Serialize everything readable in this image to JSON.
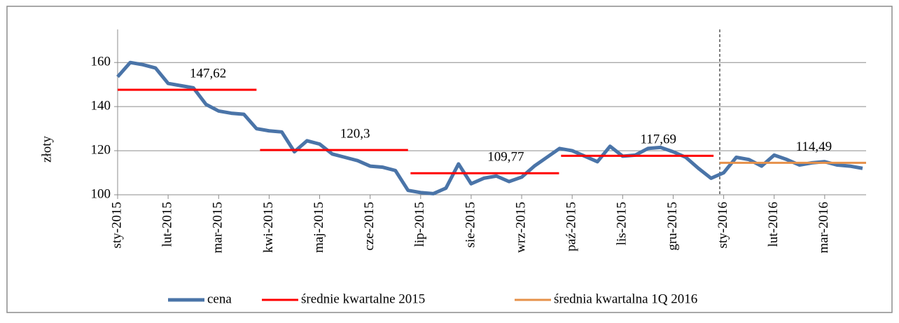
{
  "chart_data": {
    "type": "line",
    "y_label": "złoty",
    "xlim": [
      0,
      14.82
    ],
    "xticks": [
      {
        "value": 0,
        "label": "sty-2015"
      },
      {
        "value": 1,
        "label": "lut-2015"
      },
      {
        "value": 2,
        "label": "mar-2015"
      },
      {
        "value": 3,
        "label": "kwi-2015"
      },
      {
        "value": 4,
        "label": "maj-2015"
      },
      {
        "value": 5,
        "label": "cze-2015"
      },
      {
        "value": 6,
        "label": "lip-2015"
      },
      {
        "value": 7,
        "label": "sie-2015"
      },
      {
        "value": 8,
        "label": "wrz-2015"
      },
      {
        "value": 9,
        "label": "paź-2015"
      },
      {
        "value": 10,
        "label": "lis-2015"
      },
      {
        "value": 11,
        "label": "gru-2015"
      },
      {
        "value": 12,
        "label": "sty-2016"
      },
      {
        "value": 13,
        "label": "lut-2016"
      },
      {
        "value": 14,
        "label": "mar-2016"
      }
    ],
    "ylim": [
      100,
      175
    ],
    "yticks": [
      100,
      120,
      140,
      160
    ],
    "grid": true,
    "legend": "bottom",
    "series": [
      {
        "name": "cena",
        "color": "#4a74a8",
        "width": 5,
        "x": [
          0,
          0.25,
          0.5,
          0.75,
          1,
          1.25,
          1.5,
          1.75,
          2,
          2.25,
          2.5,
          2.75,
          3,
          3.25,
          3.5,
          3.75,
          4,
          4.25,
          4.5,
          4.75,
          5,
          5.25,
          5.5,
          5.75,
          6,
          6.25,
          6.5,
          6.75,
          7,
          7.25,
          7.5,
          7.75,
          8,
          8.25,
          8.5,
          8.75,
          9,
          9.25,
          9.5,
          9.75,
          10,
          10.25,
          10.5,
          10.75,
          11,
          11.25,
          11.5,
          11.75,
          12,
          12.25,
          12.5,
          12.75,
          13,
          13.25,
          13.5,
          13.75,
          14,
          14.25,
          14.5,
          14.75
        ],
        "values": [
          153.5,
          160,
          159,
          157.5,
          150.5,
          149.5,
          148.5,
          141,
          138,
          137,
          136.5,
          130,
          129,
          128.5,
          119.5,
          124.5,
          123,
          118.5,
          117,
          115.5,
          113,
          112.5,
          111,
          102,
          101,
          100.5,
          103,
          114,
          105,
          107.5,
          108.5,
          106,
          108,
          113,
          117,
          121,
          120,
          117.5,
          115,
          122,
          117.5,
          118,
          121,
          121.5,
          119.5,
          117,
          112,
          107.5,
          110,
          117,
          116,
          113,
          118,
          116,
          113.5,
          114.5,
          115,
          113.5,
          113,
          112
        ]
      },
      {
        "name": "średnie kwartalne 2015",
        "color": "#ff0000",
        "width": 3,
        "x": [
          0,
          2.75,
          2.78,
          2.82,
          5.75,
          5.77,
          5.8,
          8.74,
          8.76,
          8.78,
          11.8
        ],
        "values": [
          147.62,
          147.62,
          null,
          120.3,
          120.3,
          null,
          109.77,
          109.77,
          null,
          117.69,
          117.69
        ],
        "value_labels": [
          "147,62",
          null,
          null,
          "120,3",
          null,
          null,
          "109,77",
          null,
          null,
          "117,69",
          null
        ]
      },
      {
        "name": "średnia kwartalna 1Q 2016",
        "color": "#e6914a",
        "width": 3,
        "x": [
          11.92,
          14.82
        ],
        "values": [
          114.49,
          114.49
        ],
        "value_labels": [
          "114,49",
          null
        ]
      }
    ]
  }
}
